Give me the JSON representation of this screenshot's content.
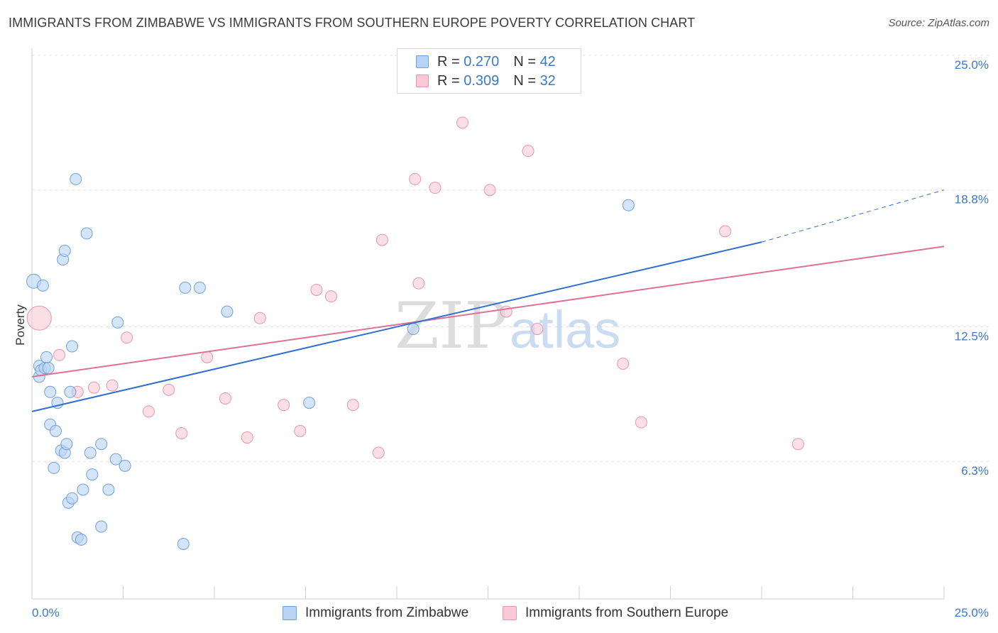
{
  "title": "IMMIGRANTS FROM ZIMBABWE VS IMMIGRANTS FROM SOUTHERN EUROPE POVERTY CORRELATION CHART",
  "source": "Source: ZipAtlas.com",
  "watermark": {
    "zip": "ZIP",
    "atlas": "atlas"
  },
  "legend": {
    "series_a": {
      "r_label": "R =",
      "r_value": "0.270",
      "n_label": "N =",
      "n_value": "42"
    },
    "series_b": {
      "r_label": "R =",
      "r_value": "0.309",
      "n_label": "N =",
      "n_value": "32"
    }
  },
  "bottom_legend": {
    "series_a": "Immigrants from Zimbabwe",
    "series_b": "Immigrants from Southern Europe"
  },
  "colors": {
    "blue_fill": "#b9d3f5",
    "blue_stroke": "#6f9fdc",
    "blue_line": "#2f6fd0",
    "pink_fill": "#f9c9d7",
    "pink_stroke": "#e695b0",
    "pink_line": "#e07098",
    "tick_label": "#3a78c9",
    "grid": "#e2e2e2"
  },
  "chart_data": {
    "type": "scatter",
    "title": "IMMIGRANTS FROM ZIMBABWE VS IMMIGRANTS FROM SOUTHERN EUROPE POVERTY CORRELATION CHART",
    "xlabel": "",
    "ylabel": "Poverty",
    "xlim": [
      0,
      25
    ],
    "ylim": [
      0,
      25
    ],
    "x_tick_labels": [
      "0.0%",
      "25.0%"
    ],
    "y_ticks": [
      6.3,
      12.5,
      18.8,
      25.0
    ],
    "y_tick_labels": [
      "6.3%",
      "12.5%",
      "18.8%",
      "25.0%"
    ],
    "grid": "horizontal dashed",
    "legend_position": "top-center",
    "series": [
      {
        "name": "Immigrants from Zimbabwe",
        "color": "#6f9fdc",
        "R": 0.27,
        "N": 42,
        "trend": {
          "x": [
            0.0,
            20.0
          ],
          "y": [
            8.6,
            16.4
          ],
          "dashed_extension_to": [
            25.0,
            18.8
          ]
        },
        "points": [
          [
            0.05,
            14.6
          ],
          [
            0.3,
            14.4
          ],
          [
            0.2,
            10.7
          ],
          [
            0.2,
            10.2
          ],
          [
            0.25,
            10.5
          ],
          [
            0.35,
            10.6
          ],
          [
            0.4,
            11.1
          ],
          [
            0.45,
            10.6
          ],
          [
            0.5,
            9.5
          ],
          [
            0.6,
            6.0
          ],
          [
            0.5,
            8.0
          ],
          [
            0.65,
            7.7
          ],
          [
            0.7,
            9.0
          ],
          [
            0.8,
            6.8
          ],
          [
            0.85,
            15.6
          ],
          [
            0.9,
            16.0
          ],
          [
            0.9,
            6.7
          ],
          [
            0.95,
            7.1
          ],
          [
            1.0,
            4.4
          ],
          [
            1.05,
            9.5
          ],
          [
            1.1,
            11.6
          ],
          [
            1.1,
            4.6
          ],
          [
            1.2,
            19.3
          ],
          [
            1.25,
            2.8
          ],
          [
            1.35,
            2.7
          ],
          [
            1.4,
            5.0
          ],
          [
            1.5,
            16.8
          ],
          [
            1.6,
            6.7
          ],
          [
            1.65,
            5.7
          ],
          [
            1.9,
            7.1
          ],
          [
            1.9,
            3.3
          ],
          [
            2.1,
            5.0
          ],
          [
            2.3,
            6.4
          ],
          [
            2.35,
            12.7
          ],
          [
            2.55,
            6.1
          ],
          [
            4.15,
            2.5
          ],
          [
            4.2,
            14.3
          ],
          [
            4.6,
            14.3
          ],
          [
            5.35,
            13.2
          ],
          [
            7.6,
            9.0
          ],
          [
            10.45,
            12.4
          ],
          [
            16.35,
            18.1
          ]
        ]
      },
      {
        "name": "Immigrants from Southern Europe",
        "color": "#e695b0",
        "R": 0.309,
        "N": 32,
        "trend": {
          "x": [
            0.0,
            25.0
          ],
          "y": [
            10.2,
            16.2
          ]
        },
        "points": [
          [
            0.2,
            12.9
          ],
          [
            0.75,
            11.2
          ],
          [
            1.25,
            9.5
          ],
          [
            1.7,
            9.7
          ],
          [
            2.2,
            9.8
          ],
          [
            2.6,
            12.0
          ],
          [
            3.2,
            8.6
          ],
          [
            3.75,
            9.6
          ],
          [
            4.1,
            7.6
          ],
          [
            4.8,
            11.1
          ],
          [
            5.3,
            9.2
          ],
          [
            5.9,
            7.4
          ],
          [
            6.25,
            12.9
          ],
          [
            6.9,
            8.9
          ],
          [
            7.35,
            7.7
          ],
          [
            7.8,
            14.2
          ],
          [
            8.2,
            13.9
          ],
          [
            8.8,
            8.9
          ],
          [
            9.5,
            6.7
          ],
          [
            9.6,
            16.5
          ],
          [
            10.5,
            19.3
          ],
          [
            10.6,
            14.5
          ],
          [
            11.05,
            18.9
          ],
          [
            11.8,
            21.9
          ],
          [
            12.55,
            18.8
          ],
          [
            13.0,
            13.2
          ],
          [
            13.6,
            20.6
          ],
          [
            13.85,
            12.4
          ],
          [
            16.2,
            10.8
          ],
          [
            16.7,
            8.1
          ],
          [
            19.0,
            16.9
          ],
          [
            21.0,
            7.1
          ]
        ]
      }
    ]
  }
}
